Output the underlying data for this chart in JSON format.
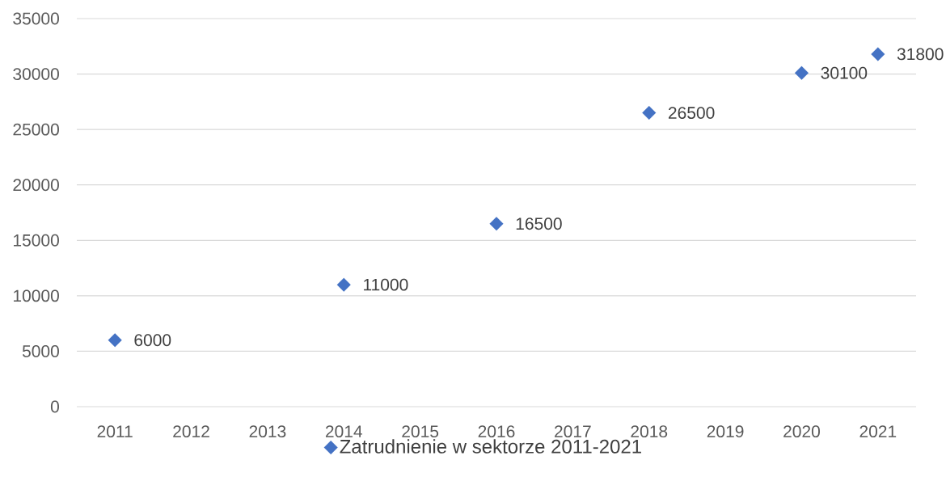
{
  "chart_data": {
    "type": "scatter",
    "categories": [
      "2011",
      "2012",
      "2013",
      "2014",
      "2015",
      "2016",
      "2017",
      "2018",
      "2019",
      "2020",
      "2021"
    ],
    "series": [
      {
        "name": "Zatrudnienie w sektorze 2011-2021",
        "color": "#4472c4",
        "values": [
          6000,
          null,
          null,
          11000,
          null,
          16500,
          null,
          26500,
          null,
          30100,
          31800
        ]
      }
    ],
    "ylim": [
      0,
      35000
    ],
    "yticks": [
      0,
      5000,
      10000,
      15000,
      20000,
      25000,
      30000,
      35000
    ],
    "grid": "y",
    "legend": "bottom",
    "marker": "diamond",
    "data_labels": true
  }
}
